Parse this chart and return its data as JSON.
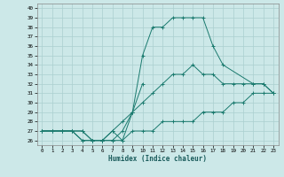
{
  "title": "",
  "xlabel": "Humidex (Indice chaleur)",
  "xlim": [
    -0.5,
    23.5
  ],
  "ylim": [
    25.5,
    40.5
  ],
  "yticks": [
    26,
    27,
    28,
    29,
    30,
    31,
    32,
    33,
    34,
    35,
    36,
    37,
    38,
    39,
    40
  ],
  "xticks": [
    0,
    1,
    2,
    3,
    4,
    5,
    6,
    7,
    8,
    9,
    10,
    11,
    12,
    13,
    14,
    15,
    16,
    17,
    18,
    19,
    20,
    21,
    22,
    23
  ],
  "bg_color": "#cce8e8",
  "grid_color": "#aacfcf",
  "line_color": "#1a7a6e",
  "curve_max": {
    "x": [
      0,
      1,
      2,
      3,
      4,
      5,
      6,
      7,
      8,
      9,
      10,
      11,
      12,
      13,
      14,
      15,
      16,
      17,
      18,
      21,
      22,
      23
    ],
    "y": [
      27,
      27,
      27,
      27,
      26,
      26,
      26,
      26,
      27,
      29,
      35,
      38,
      38,
      39,
      39,
      39,
      39,
      36,
      34,
      32,
      32,
      31
    ]
  },
  "curve_mean": {
    "x": [
      0,
      1,
      2,
      3,
      4,
      5,
      6,
      7,
      8,
      9,
      10,
      11,
      12,
      13,
      14,
      15,
      16,
      17,
      18,
      19,
      20,
      21,
      22,
      23
    ],
    "y": [
      27,
      27,
      27,
      27,
      27,
      26,
      26,
      27,
      28,
      29,
      30,
      31,
      32,
      33,
      33,
      34,
      33,
      33,
      32,
      32,
      32,
      32,
      32,
      31
    ]
  },
  "curve_min": {
    "x": [
      0,
      1,
      2,
      3,
      4,
      5,
      6,
      7,
      8,
      9,
      10,
      11,
      12,
      13,
      14,
      15,
      16,
      17,
      18,
      19,
      20,
      21,
      22,
      23
    ],
    "y": [
      27,
      27,
      27,
      27,
      27,
      26,
      26,
      26,
      26,
      27,
      27,
      27,
      28,
      28,
      28,
      28,
      29,
      29,
      29,
      30,
      30,
      31,
      31,
      31
    ]
  },
  "curve_extra": {
    "x": [
      0,
      2,
      3,
      4,
      5,
      6,
      7,
      8,
      9,
      10
    ],
    "y": [
      27,
      27,
      27,
      26,
      26,
      26,
      27,
      26,
      29,
      32
    ]
  }
}
